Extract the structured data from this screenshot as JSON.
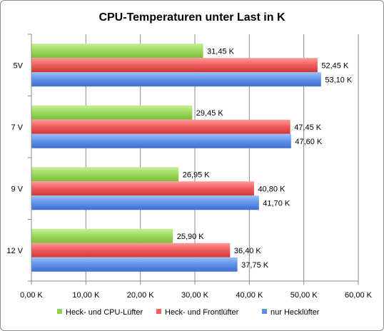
{
  "chart_data": {
    "type": "bar",
    "orientation": "horizontal",
    "title": "CPU-Temperaturen unter Last in K",
    "categories": [
      "5V",
      "7 V",
      "9 V",
      "12 V"
    ],
    "series": [
      {
        "name": "Heck- und CPU-Lüfter",
        "color": "#92d050",
        "values": [
          31.45,
          29.45,
          26.95,
          25.9
        ],
        "labels": [
          "31,45 K",
          "29,45 K",
          "26,95 K",
          "25,90 K"
        ]
      },
      {
        "name": "Heck- und Frontlüfter",
        "color": "#ff5b5b",
        "values": [
          52.45,
          47.45,
          40.8,
          36.4
        ],
        "labels": [
          "52,45 K",
          "47,45 K",
          "40,80 K",
          "36,40 K"
        ]
      },
      {
        "name": "nur Hecklüfter",
        "color": "#5c8fe8",
        "values": [
          53.1,
          47.6,
          41.7,
          37.75
        ],
        "labels": [
          "53,10 K",
          "47,60 K",
          "41,70 K",
          "37,75 K"
        ]
      }
    ],
    "xlim": [
      0,
      60
    ],
    "x_ticks": [
      0,
      10,
      20,
      30,
      40,
      50,
      60
    ],
    "x_tick_labels": [
      "0,00 K",
      "10,00 K",
      "20,00 K",
      "30,00 K",
      "40,00 K",
      "50,00 K",
      "60,00 K"
    ],
    "grid": true,
    "legend_position": "bottom"
  }
}
